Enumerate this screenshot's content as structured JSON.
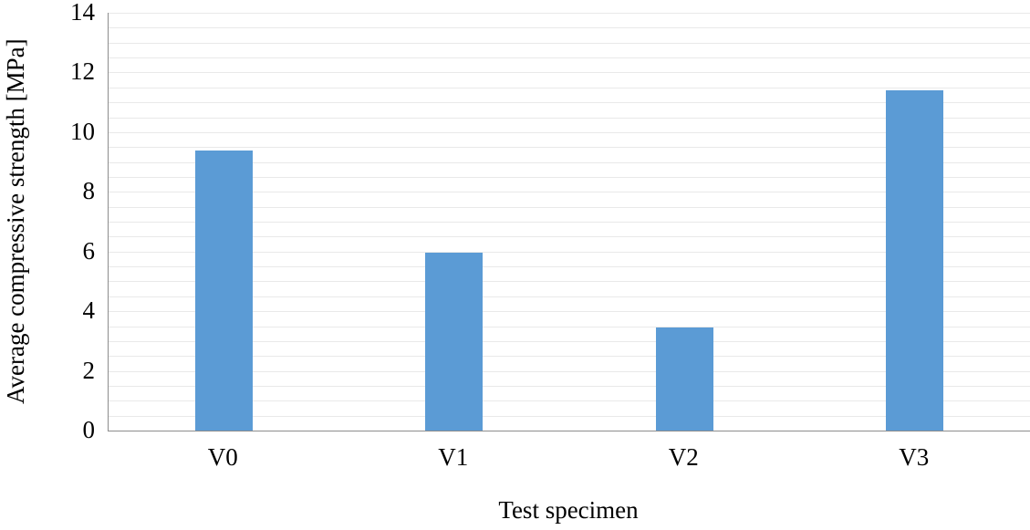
{
  "chart_data": {
    "type": "bar",
    "title": "",
    "categories": [
      "V0",
      "V1",
      "V2",
      "V3"
    ],
    "values": [
      9.4,
      5.95,
      3.45,
      11.4
    ],
    "xlabel": "Test specimen",
    "ylabel": "Average compressive strength [MPa]",
    "ylim": [
      0,
      14
    ],
    "y_major_step": 2,
    "y_minor_step": 0.5,
    "grid": "minor-horizontal",
    "legend_position": "none",
    "bar_color": "#5B9BD5",
    "gridline_color": "#E9E9E9",
    "axis_color": "#8C8C8C"
  }
}
